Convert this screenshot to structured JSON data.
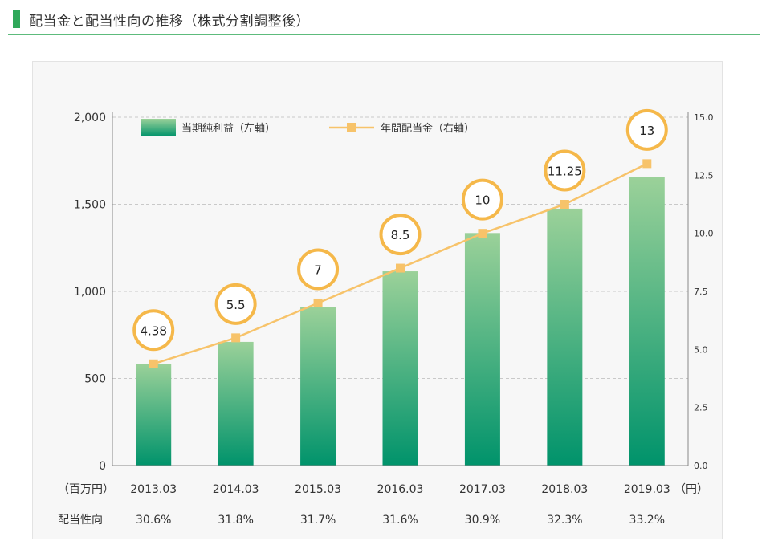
{
  "page": {
    "title": "配当金と配当性向の推移（株式分割調整後）"
  },
  "chart_data": {
    "type": "bar",
    "categories": [
      "2013.03",
      "2014.03",
      "2015.03",
      "2016.03",
      "2017.03",
      "2018.03",
      "2019.03"
    ],
    "series": [
      {
        "name": "当期純利益（左軸）",
        "type": "bar",
        "axis": "left",
        "values": [
          585,
          710,
          910,
          1115,
          1335,
          1475,
          1655
        ],
        "color": "#3aa86a"
      },
      {
        "name": "年間配当金（右軸）",
        "type": "line",
        "axis": "right",
        "values": [
          4.38,
          5.5,
          7,
          8.5,
          10,
          11.25,
          13
        ],
        "color": "#f7c36a"
      }
    ],
    "data_labels": [
      "4.38",
      "5.5",
      "7",
      "8.5",
      "10",
      "11.25",
      "13"
    ],
    "left_axis": {
      "unit": "（百万円）",
      "min": 0,
      "max": 2000,
      "ticks": [
        0,
        500,
        1000,
        1500,
        2000
      ],
      "tick_labels": [
        "0",
        "500",
        "1,000",
        "1,500",
        "2,000"
      ]
    },
    "right_axis": {
      "unit": "（円）",
      "min": 0,
      "max": 15,
      "ticks": [
        0,
        2.5,
        5,
        7.5,
        10,
        12.5,
        15
      ],
      "tick_labels": [
        "0.0",
        "2.5",
        "5.0",
        "7.5",
        "10.0",
        "12.5",
        "15.0"
      ]
    },
    "payout_ratio": {
      "label": "配当性向",
      "values": [
        "30.6%",
        "31.8%",
        "31.7%",
        "31.6%",
        "30.9%",
        "32.3%",
        "33.2%"
      ]
    },
    "grid": true,
    "legend_position": "top"
  }
}
